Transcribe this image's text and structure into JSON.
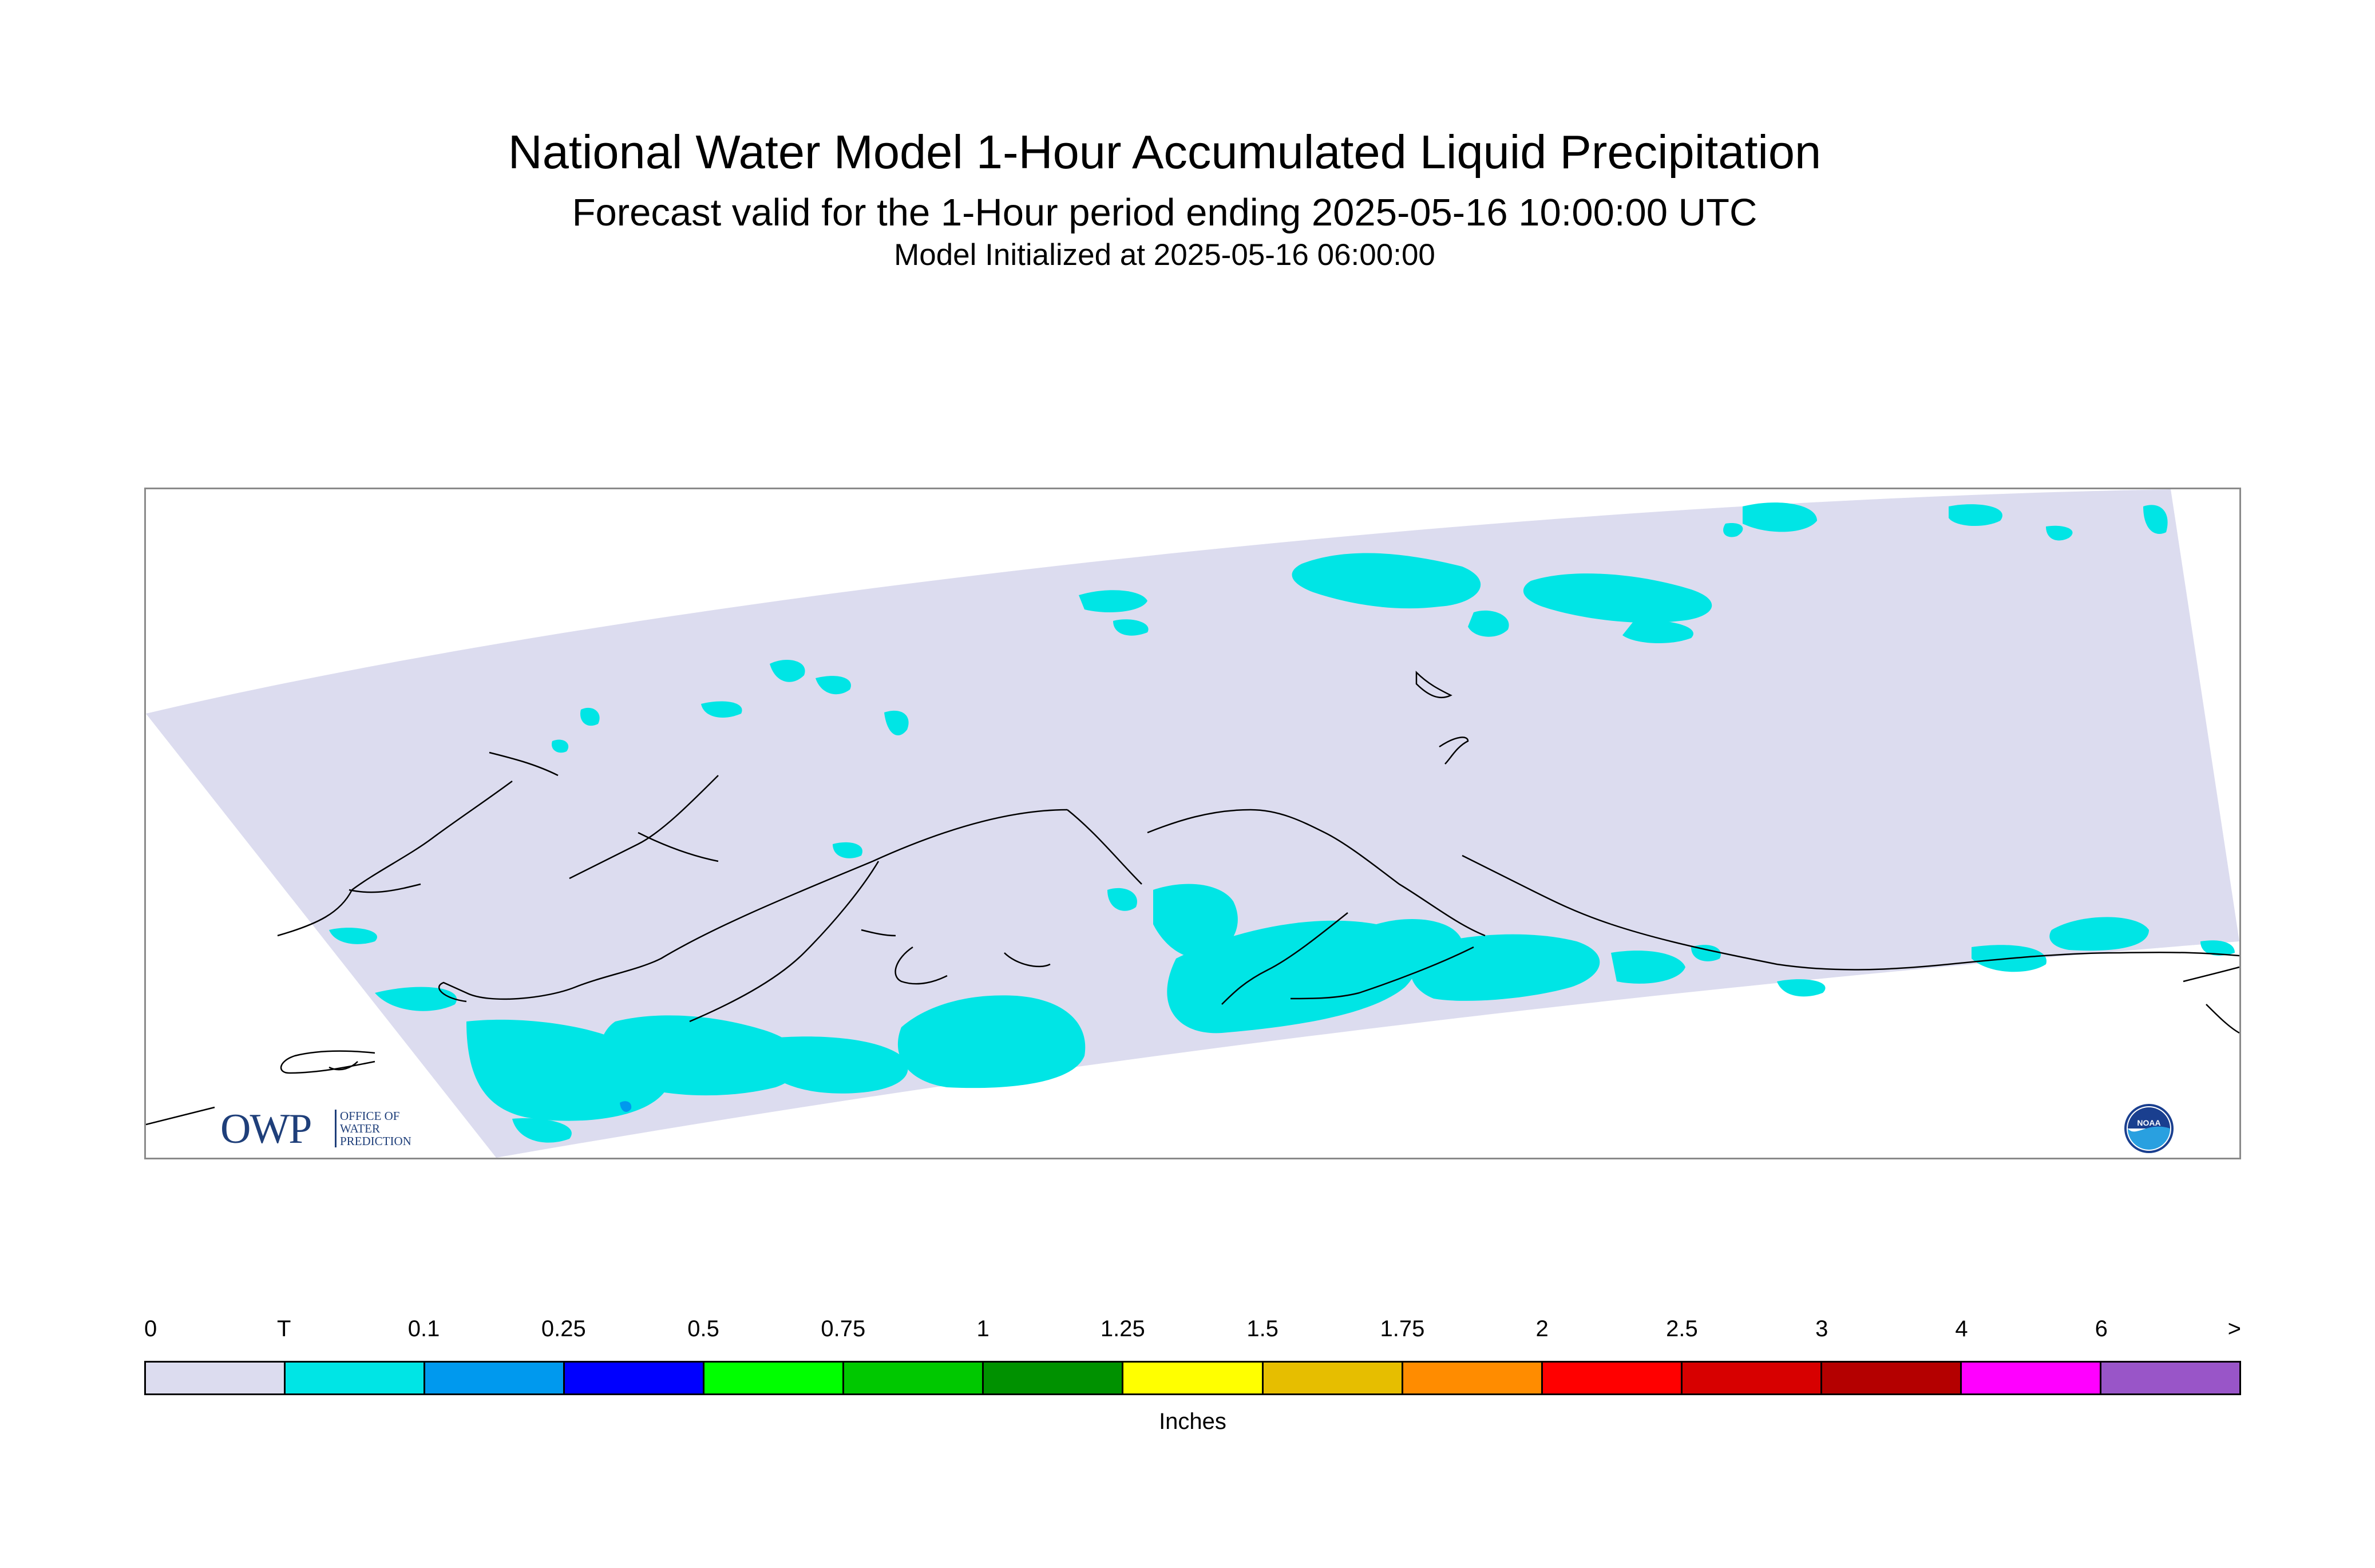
{
  "header": {
    "title": "National Water Model 1-Hour Accumulated Liquid Precipitation",
    "subtitle": "Forecast valid for the 1-Hour period ending 2025-05-16 10:00:00 UTC",
    "initialized": "Model Initialized at 2025-05-16 06:00:00"
  },
  "map": {
    "domain_fill_color": "#dcdcef",
    "precip_color_trace": "#00e5e5",
    "precip_color_light": "#0099ee",
    "coastline_color": "#000000",
    "icons": [
      "owp-logo",
      "noaa-logo"
    ]
  },
  "logos": {
    "owp_letters": "OWP",
    "owp_lines": [
      "OFFICE OF",
      "WATER",
      "PREDICTION"
    ],
    "noaa_text": "NOAA"
  },
  "legend": {
    "ticks": [
      "0",
      "T",
      "0.1",
      "0.25",
      "0.5",
      "0.75",
      "1",
      "1.25",
      "1.5",
      "1.75",
      "2",
      "2.5",
      "3",
      "4",
      "6",
      ">"
    ],
    "colors": [
      "#dcdcef",
      "#00e5e5",
      "#0099ee",
      "#0000ff",
      "#00ff00",
      "#00c800",
      "#009100",
      "#ffff00",
      "#e6be00",
      "#ff8c00",
      "#ff0000",
      "#d70000",
      "#b40000",
      "#ff00ff",
      "#9955c8"
    ],
    "unit_label": "Inches"
  }
}
